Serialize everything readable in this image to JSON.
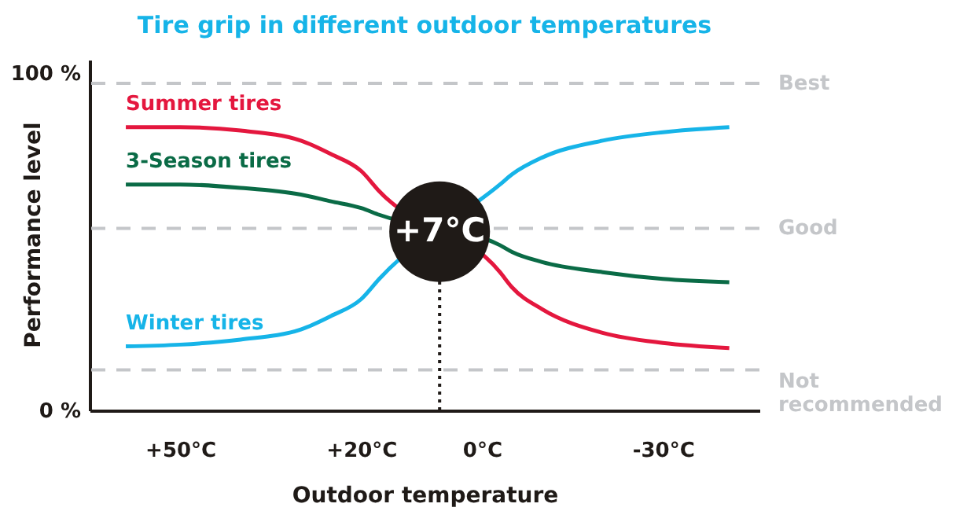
{
  "chart_data": {
    "type": "line",
    "title": "Tire grip in different outdoor temperatures",
    "xlabel": "Outdoor temperature",
    "ylabel": "Performance level",
    "xlim": [
      65,
      -46
    ],
    "ylim": [
      0,
      104
    ],
    "xticks": [
      {
        "value": 50,
        "label": "+50°C"
      },
      {
        "value": 20,
        "label": "+20°C"
      },
      {
        "value": 0,
        "label": "0°C"
      },
      {
        "value": -30,
        "label": "-30°C"
      }
    ],
    "yticks": [
      {
        "value": 100,
        "label": "100 %"
      },
      {
        "value": 0,
        "label": "0 %"
      }
    ],
    "x": [
      59,
      50,
      40,
      30,
      25,
      20,
      17,
      -3,
      -5,
      -10,
      -20,
      -30,
      -41
    ],
    "series": [
      {
        "name": "Summer tires",
        "color": "#e4173e",
        "values": [
          84,
          84,
          83,
          80,
          76,
          71,
          65,
          41,
          36.5,
          30,
          23,
          20,
          18.5
        ]
      },
      {
        "name": "3-Season tires",
        "color": "#0a6b46",
        "values": [
          67,
          67,
          66,
          64,
          62,
          60,
          58,
          49,
          47,
          44,
          41,
          39,
          38
        ]
      },
      {
        "name": "Winter tires",
        "color": "#16b4e8",
        "values": [
          19,
          19.5,
          21,
          24,
          28,
          33,
          39,
          67,
          70,
          75,
          80,
          82.5,
          84
        ]
      }
    ],
    "ref_lines": [
      {
        "axis": "y",
        "value": 97,
        "label": "Best",
        "color": "#c4c6c9",
        "line_style": "dashed"
      },
      {
        "axis": "y",
        "value": 54,
        "label": "Good",
        "color": "#c4c6c9",
        "line_style": "dashed"
      },
      {
        "axis": "y",
        "value": 12,
        "label": "Not recommended",
        "color": "#c4c6c9",
        "line_style": "dashed"
      },
      {
        "axis": "x",
        "value": 7,
        "color": "#1f1a17",
        "line_style": "dotted"
      }
    ],
    "annotations": [
      {
        "text": "+7°C",
        "x": 7,
        "y": 53
      }
    ],
    "legend": false,
    "grid": false,
    "marker": "none",
    "line_style": "solid"
  }
}
